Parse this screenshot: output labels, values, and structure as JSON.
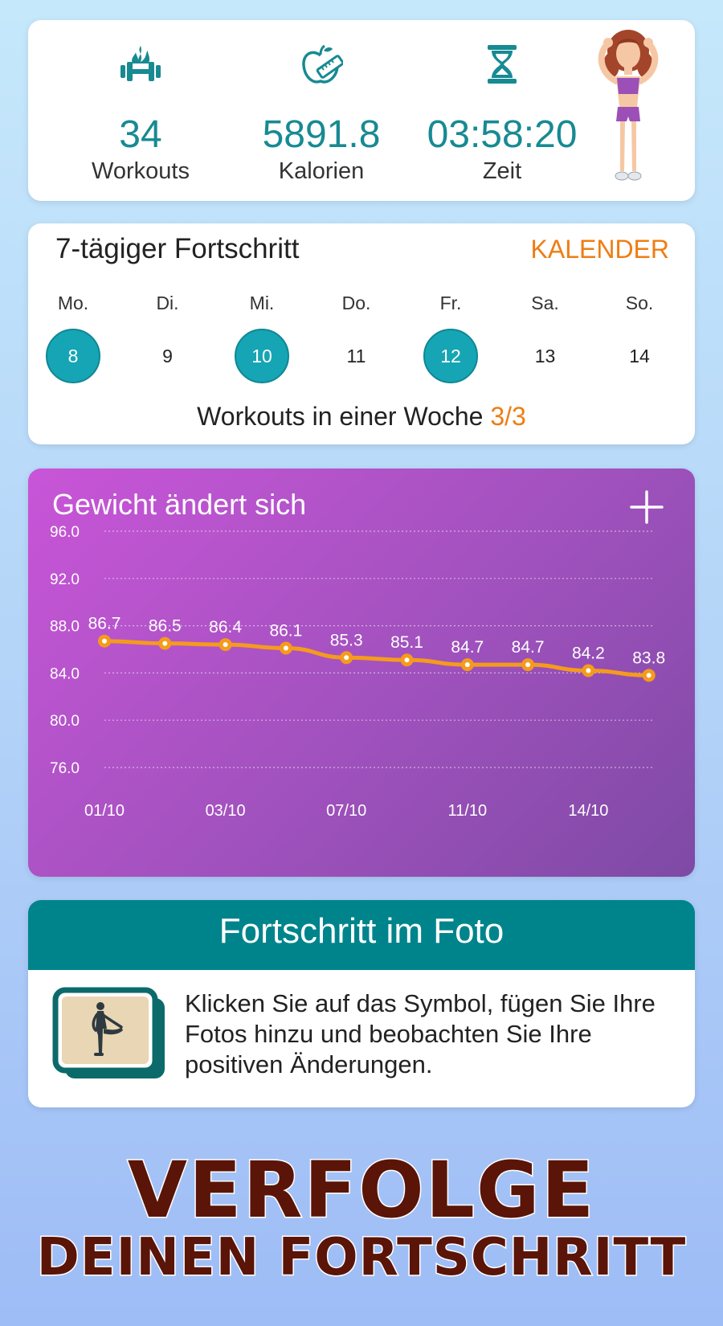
{
  "stats": {
    "workouts": {
      "value": "34",
      "label": "Workouts",
      "icon": "dumbbell-fire-icon"
    },
    "calories": {
      "value": "5891.8",
      "label": "Kalorien",
      "icon": "apple-tape-icon"
    },
    "time": {
      "value": "03:58:20",
      "label": "Zeit",
      "icon": "hourglass-icon"
    }
  },
  "progress": {
    "title": "7-tägiger Fortschritt",
    "calendar_label": "KALENDER",
    "days": [
      {
        "name": "Mo.",
        "date": "8",
        "done": true
      },
      {
        "name": "Di.",
        "date": "9",
        "done": false
      },
      {
        "name": "Mi.",
        "date": "10",
        "done": true
      },
      {
        "name": "Do.",
        "date": "11",
        "done": false
      },
      {
        "name": "Fr.",
        "date": "12",
        "done": true
      },
      {
        "name": "Sa.",
        "date": "13",
        "done": false
      },
      {
        "name": "So.",
        "date": "14",
        "done": false
      }
    ],
    "week_text": "Workouts in einer Woche ",
    "week_count": "3/3"
  },
  "weight": {
    "title": "Gewicht ändert sich",
    "chart_data": {
      "type": "line",
      "title": "Gewicht ändert sich",
      "xlabel": "",
      "ylabel": "",
      "y_ticks": [
        "96.0",
        "92.0",
        "88.0",
        "84.0",
        "80.0",
        "76.0"
      ],
      "ylim": [
        76,
        96
      ],
      "x_tick_labels": [
        "01/10",
        "03/10",
        "07/10",
        "11/10",
        "14/10"
      ],
      "x_tick_positions": [
        0,
        2,
        4,
        6,
        8
      ],
      "values": [
        86.7,
        86.5,
        86.4,
        86.1,
        85.3,
        85.1,
        84.7,
        84.7,
        84.2,
        83.8
      ],
      "data_labels": [
        "86.7",
        "86.5",
        "86.4",
        "86.1",
        "85.3",
        "85.1",
        "84.7",
        "84.7",
        "84.2",
        "83.8"
      ],
      "line_color": "#f59b1c",
      "grid": true
    }
  },
  "photo": {
    "title": "Fortschritt im Foto",
    "text": "Klicken Sie auf das Symbol, fügen Sie Ihre Fotos hinzu und beobachten Sie Ihre positiven Änderungen.",
    "icon": "photo-stack-icon"
  },
  "promo": {
    "line1": "VERFOLGE",
    "line2": "DEINEN FORTSCHRITT"
  },
  "colors": {
    "teal": "#178a92",
    "orange": "#ef7d12",
    "header_teal": "#00848c"
  }
}
